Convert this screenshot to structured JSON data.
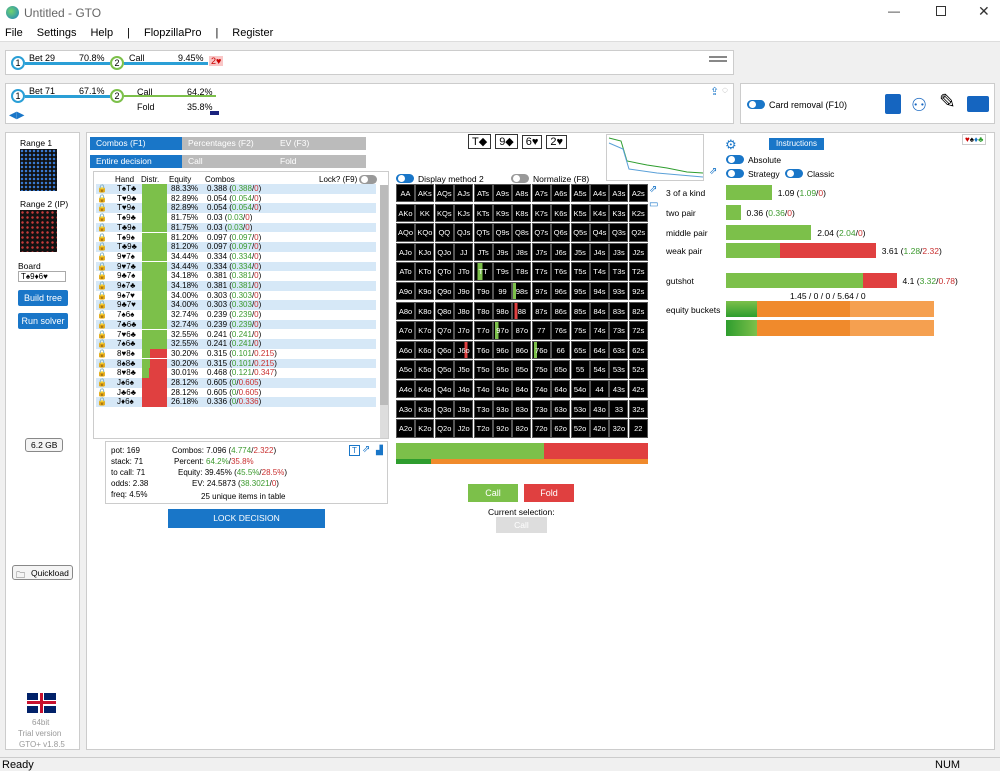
{
  "window": {
    "title": "Untitled - GTO"
  },
  "menu": [
    "File",
    "Settings",
    "Help",
    "|",
    "FlopzillaPro",
    "|",
    "Register"
  ],
  "tree1": {
    "n1": "1",
    "a1": "Bet 29",
    "p1": "70.8%",
    "n2": "2",
    "a2": "Call",
    "p2": "9.45%",
    "card": "2♥"
  },
  "tree2": {
    "n1": "1",
    "a1": "Bet 71",
    "p1": "67.1%",
    "n2": "2",
    "a2": "Call",
    "p2": "64.2%",
    "a3": "Fold",
    "p3": "35.8%"
  },
  "card_removal": "Card removal (F10)",
  "left": {
    "range1": "Range 1 (OOP)",
    "range2": "Range 2 (IP)",
    "board_label": "Board",
    "board": "T♠9♦6♥",
    "build": "Build tree",
    "run": "Run solver",
    "mem": "6.2 GB",
    "quickload": "Quickload",
    "bits": "64bit",
    "trial": "Trial version",
    "version": "GTO+ v1.8.5"
  },
  "tabs": {
    "combos": "Combos (F1)",
    "percentages": "Percentages (F2)",
    "ev": "EV (F3)",
    "entire": "Entire decision",
    "call": "Call",
    "fold": "Fold"
  },
  "board_cards": [
    "T◆",
    "9◆",
    "6♥",
    "2♥"
  ],
  "table": {
    "headers": [
      "Hand",
      "Distr.",
      "Equity",
      "Combos"
    ],
    "lock": "Lock? (F9)",
    "rows": [
      [
        "T♠T♣",
        "88.33%",
        "0.388",
        "0.388",
        "0"
      ],
      [
        "T♥9♣",
        "82.89%",
        "0.054",
        "0.054",
        "0"
      ],
      [
        "T♥9♠",
        "82.89%",
        "0.054",
        "0.054",
        "0"
      ],
      [
        "T♠9♣",
        "81.75%",
        "0.03",
        "0.03",
        "0"
      ],
      [
        "T♣9♠",
        "81.75%",
        "0.03",
        "0.03",
        "0"
      ],
      [
        "T♠9♠",
        "81.20%",
        "0.097",
        "0.097",
        "0"
      ],
      [
        "T♣9♣",
        "81.20%",
        "0.097",
        "0.097",
        "0"
      ],
      [
        "9♥7♠",
        "34.44%",
        "0.334",
        "0.334",
        "0"
      ],
      [
        "9♥7♣",
        "34.44%",
        "0.334",
        "0.334",
        "0"
      ],
      [
        "9♣7♠",
        "34.18%",
        "0.381",
        "0.381",
        "0"
      ],
      [
        "9♠7♣",
        "34.18%",
        "0.381",
        "0.381",
        "0"
      ],
      [
        "9♠7♥",
        "34.00%",
        "0.303",
        "0.303",
        "0"
      ],
      [
        "9♣7♥",
        "34.00%",
        "0.303",
        "0.303",
        "0"
      ],
      [
        "7♠6♠",
        "32.74%",
        "0.239",
        "0.239",
        "0"
      ],
      [
        "7♣6♣",
        "32.74%",
        "0.239",
        "0.239",
        "0"
      ],
      [
        "7♥6♣",
        "32.55%",
        "0.241",
        "0.241",
        "0"
      ],
      [
        "7♠6♣",
        "32.55%",
        "0.241",
        "0.241",
        "0"
      ],
      [
        "8♥8♠",
        "30.20%",
        "0.315",
        "0.101",
        "0.215"
      ],
      [
        "8♠8♣",
        "30.20%",
        "0.315",
        "0.101",
        "0.215"
      ],
      [
        "8♥8♣",
        "30.01%",
        "0.468",
        "0.121",
        "0.347"
      ],
      [
        "J♠6♠",
        "28.12%",
        "0.605",
        "0",
        "0.605"
      ],
      [
        "J♣6♣",
        "28.12%",
        "0.605",
        "0",
        "0.605"
      ],
      [
        "J♦6♠",
        "26.18%",
        "0.336",
        "0",
        "0.336"
      ]
    ]
  },
  "stats": {
    "pot": "pot: 169",
    "stack": "stack: 71",
    "to_call": "to call: 71",
    "odds": "odds: 2.38",
    "freq": "freq: 4.5%",
    "combos_l": "Combos:",
    "combos_v": "7.096",
    "combos_a": "4.774",
    "combos_b": "2.322",
    "percent_l": "Percent:",
    "percent_a": "64.2%",
    "percent_b": "35.8%",
    "equity_l": "Equity:",
    "equity_v": "39.45%",
    "equity_a": "45.5%",
    "equity_b": "28.5%",
    "ev_l": "EV:",
    "ev_v": "24.5873",
    "ev_a": "38.3021",
    "ev_b": "0",
    "unique": "25 unique items in table"
  },
  "lock_decision": "LOCK DECISION",
  "display_method": "Display method 2",
  "normalize": "Normalize (F8)",
  "grid": [
    [
      "AA",
      "AKs",
      "AQs",
      "AJs",
      "ATs",
      "A9s",
      "A8s",
      "A7s",
      "A6s",
      "A5s",
      "A4s",
      "A3s",
      "A2s"
    ],
    [
      "AKo",
      "KK",
      "KQs",
      "KJs",
      "KTs",
      "K9s",
      "K8s",
      "K7s",
      "K6s",
      "K5s",
      "K4s",
      "K3s",
      "K2s"
    ],
    [
      "AQo",
      "KQo",
      "QQ",
      "QJs",
      "QTs",
      "Q9s",
      "Q8s",
      "Q7s",
      "Q6s",
      "Q5s",
      "Q4s",
      "Q3s",
      "Q2s"
    ],
    [
      "AJo",
      "KJo",
      "QJo",
      "JJ",
      "JTs",
      "J9s",
      "J8s",
      "J7s",
      "J6s",
      "J5s",
      "J4s",
      "J3s",
      "J2s"
    ],
    [
      "ATo",
      "KTo",
      "QTo",
      "JTo",
      "TT",
      "T9s",
      "T8s",
      "T7s",
      "T6s",
      "T5s",
      "T4s",
      "T3s",
      "T2s"
    ],
    [
      "A9o",
      "K9o",
      "Q9o",
      "J9o",
      "T9o",
      "99",
      "98s",
      "97s",
      "96s",
      "95s",
      "94s",
      "93s",
      "92s"
    ],
    [
      "A8o",
      "K8o",
      "Q8o",
      "J8o",
      "T8o",
      "98o",
      "88",
      "87s",
      "86s",
      "85s",
      "84s",
      "83s",
      "82s"
    ],
    [
      "A7o",
      "K7o",
      "Q7o",
      "J7o",
      "T7o",
      "97o",
      "87o",
      "77",
      "76s",
      "75s",
      "74s",
      "73s",
      "72s"
    ],
    [
      "A6o",
      "K6o",
      "Q6o",
      "J6o",
      "T6o",
      "96o",
      "86o",
      "76o",
      "66",
      "65s",
      "64s",
      "63s",
      "62s"
    ],
    [
      "A5o",
      "K5o",
      "Q5o",
      "J5o",
      "T5o",
      "95o",
      "85o",
      "75o",
      "65o",
      "55",
      "54s",
      "53s",
      "52s"
    ],
    [
      "A4o",
      "K4o",
      "Q4o",
      "J4o",
      "T4o",
      "94o",
      "84o",
      "74o",
      "64o",
      "54o",
      "44",
      "43s",
      "42s"
    ],
    [
      "A3o",
      "K3o",
      "Q3o",
      "J3o",
      "T3o",
      "93o",
      "83o",
      "73o",
      "63o",
      "53o",
      "43o",
      "33",
      "32s"
    ],
    [
      "A2o",
      "K2o",
      "Q2o",
      "J2o",
      "T2o",
      "92o",
      "82o",
      "72o",
      "62o",
      "52o",
      "42o",
      "32o",
      "22"
    ]
  ],
  "actions": {
    "call": "Call",
    "fold": "Fold",
    "current": "Current selection:",
    "current_val": "Call"
  },
  "right": {
    "instructions": "Instructions",
    "absolute": "Absolute",
    "strategy": "Strategy",
    "classic": "Classic",
    "cats": [
      {
        "label": "3 of a kind",
        "v": "1.09",
        "a": "1.09",
        "b": "0",
        "call": 0.22,
        "fold": 0
      },
      {
        "label": "two pair",
        "v": "0.36",
        "a": "0.36",
        "b": "0",
        "call": 0.07,
        "fold": 0
      },
      {
        "label": "middle pair",
        "v": "2.04",
        "a": "2.04",
        "b": "0",
        "call": 0.41,
        "fold": 0
      },
      {
        "label": "weak pair",
        "v": "3.61",
        "a": "1.28",
        "b": "2.32",
        "call": 0.26,
        "fold": 0.46
      },
      {
        "label": "gutshot",
        "v": "4.1",
        "a": "3.32",
        "b": "0.78",
        "call": 0.66,
        "fold": 0.16
      }
    ],
    "buckets_line": "1.45 / 0 / 0 / 5.64 / 0",
    "buckets_label": "equity buckets"
  },
  "status": {
    "ready": "Ready",
    "num": "NUM"
  }
}
